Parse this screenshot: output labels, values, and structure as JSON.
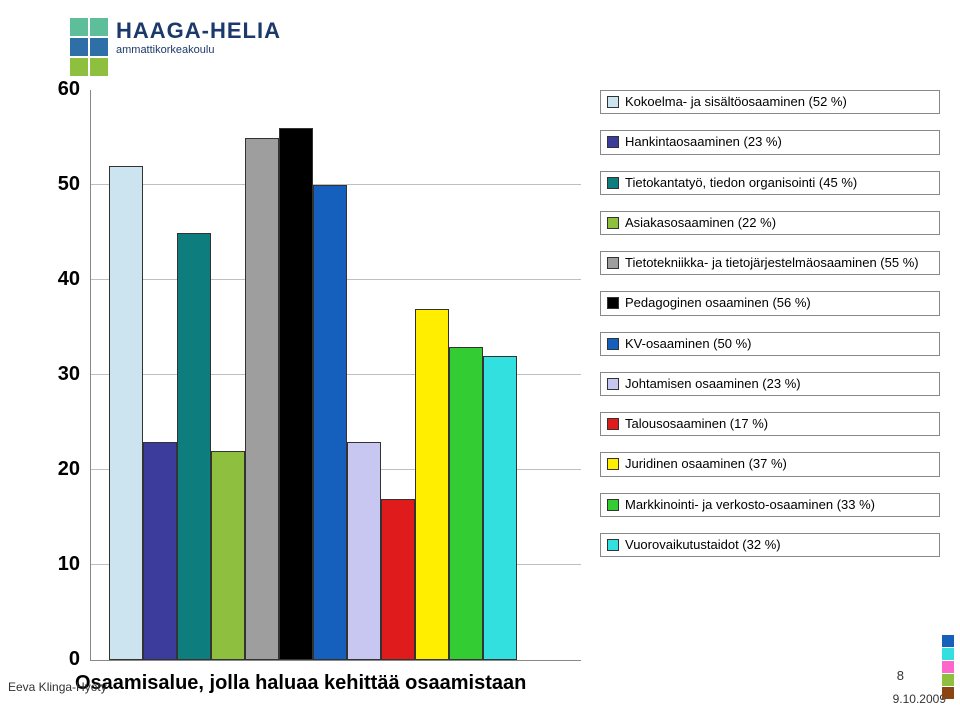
{
  "logo": {
    "main": "HAAGA-HELIA",
    "sub": "ammattikorkeakoulu",
    "squares": [
      "#5dbf9a",
      "#5dbf9a",
      "#2e6fa7",
      "#2e6fa7",
      "#8fbf3f",
      "#8fbf3f"
    ]
  },
  "chart": {
    "type": "bar",
    "ymax": 60,
    "ytick_step": 10,
    "yticks": [
      0,
      10,
      20,
      30,
      40,
      50,
      60
    ],
    "plot_border_color": "#888888",
    "grid_color": "#bfbfbf",
    "x_title": "Osaamisalue, jolla haluaa kehittää osaamistaan",
    "bars": [
      {
        "name": "kokoelma",
        "value": 52,
        "color": "#cbe4ef"
      },
      {
        "name": "hankinta",
        "value": 23,
        "color": "#3c3c9c"
      },
      {
        "name": "tietokanta",
        "value": 45,
        "color": "#0e7d7d"
      },
      {
        "name": "asiakas",
        "value": 22,
        "color": "#8fbf3f"
      },
      {
        "name": "tietotekniikka",
        "value": 55,
        "color": "#9e9e9e"
      },
      {
        "name": "pedagoginen",
        "value": 56,
        "color": "#000000"
      },
      {
        "name": "kv",
        "value": 50,
        "color": "#1560bd"
      },
      {
        "name": "johtaminen",
        "value": 23,
        "color": "#c7c7f2"
      },
      {
        "name": "talous",
        "value": 17,
        "color": "#e01b1b"
      },
      {
        "name": "juridinen",
        "value": 37,
        "color": "#ffee00"
      },
      {
        "name": "markkinointi",
        "value": 33,
        "color": "#33cc33"
      },
      {
        "name": "vuorovaikutus",
        "value": 32,
        "color": "#33e0e0"
      }
    ]
  },
  "legend": [
    {
      "swatch": "#cbe4ef",
      "label": "Kokoelma- ja sisältöosaaminen (52 %)",
      "border": true
    },
    {
      "swatch": "#3c3c9c",
      "label": "Hankintaosaaminen (23 %)",
      "border": true
    },
    {
      "swatch": "#0e7d7d",
      "label": "Tietokantatyö, tiedon organisointi (45 %)",
      "border": true
    },
    {
      "swatch": "#8fbf3f",
      "label": "Asiakasosaaminen (22 %)",
      "border": true
    },
    {
      "swatch": "#9e9e9e",
      "label": "Tietotekniikka- ja tietojärjestelmäosaaminen (55 %)",
      "border": true
    },
    {
      "swatch": "#000000",
      "label": "Pedagoginen osaaminen (56 %)",
      "border": true
    },
    {
      "swatch": "#1560bd",
      "label": "KV-osaaminen (50 %)",
      "border": true
    },
    {
      "swatch": "#c7c7f2",
      "label": "Johtamisen osaaminen (23 %)",
      "border": true
    },
    {
      "swatch": "#e01b1b",
      "label": "Talousosaaminen (17 %)",
      "border": true
    },
    {
      "swatch": "#ffee00",
      "label": "Juridinen osaaminen (37 %)",
      "border": true
    },
    {
      "swatch": "#33cc33",
      "label": "Markkinointi- ja verkosto-osaaminen (33 %)",
      "border": true
    },
    {
      "swatch": "#33e0e0",
      "label": "Vuorovaikutustaidot (32 %)",
      "border": true
    }
  ],
  "side_colors": [
    "#1560bd",
    "#33e0e0",
    "#ff66cc",
    "#8fbf3f",
    "#8b4513"
  ],
  "footer": {
    "left": "Eeva Klinga-Hyöty",
    "date": "9.10.2009",
    "page": "8"
  }
}
